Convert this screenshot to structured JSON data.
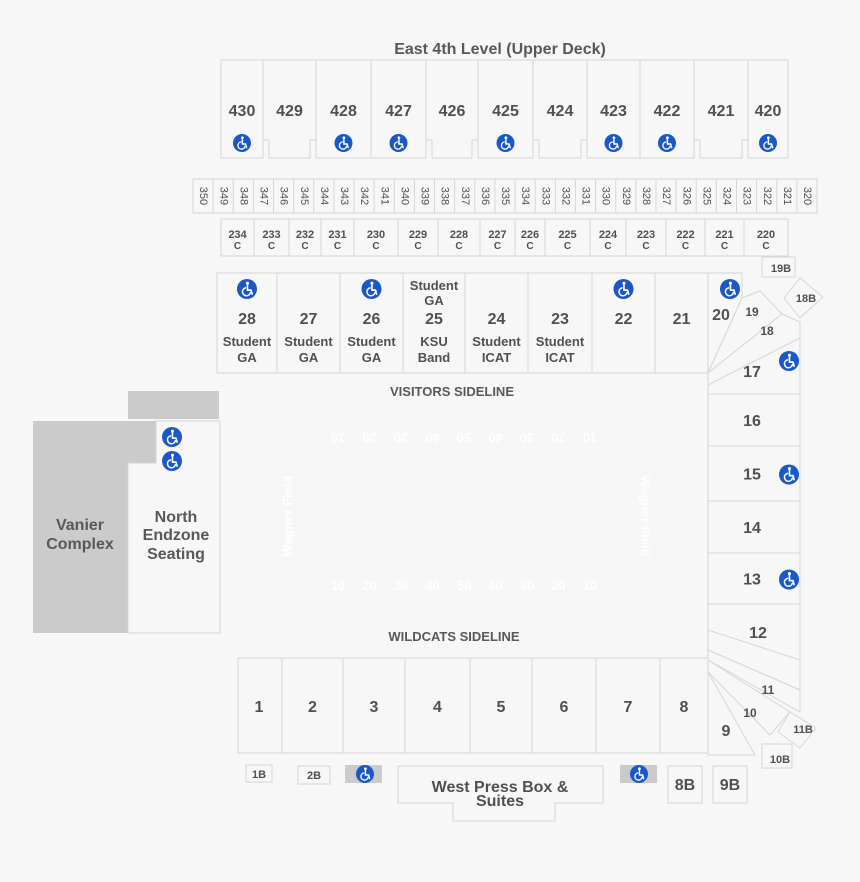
{
  "title": "East 4th Level (Upper Deck)",
  "colors": {
    "background": "#f7f7f7",
    "section_stroke": "#d6d6d6",
    "section_text": "#505050",
    "label_text": "#585858",
    "accessible_icon": "#1a57c7",
    "gray_block": "#cbcbcb",
    "field_lines": "#ffffff"
  },
  "upper_deck_sections": [
    "430",
    "429",
    "428",
    "427",
    "426",
    "425",
    "424",
    "423",
    "422",
    "421",
    "420"
  ],
  "upper_deck_accessible": [
    "430",
    "428",
    "427",
    "425",
    "423",
    "422",
    "420"
  ],
  "level3_sections": [
    "350",
    "349",
    "348",
    "347",
    "346",
    "345",
    "344",
    "343",
    "342",
    "341",
    "340",
    "339",
    "338",
    "337",
    "336",
    "335",
    "334",
    "333",
    "332",
    "331",
    "330",
    "329",
    "328",
    "327",
    "326",
    "325",
    "324",
    "323",
    "322",
    "321",
    "320"
  ],
  "level2_sections": [
    "234",
    "233",
    "232",
    "231",
    "230",
    "229",
    "228",
    "227",
    "226",
    "225",
    "224",
    "223",
    "222",
    "221",
    "220"
  ],
  "level2_suffix": "C",
  "east_lower_sections": [
    {
      "num": "28",
      "lines": [
        "Student",
        "GA"
      ],
      "accessible": true
    },
    {
      "num": "27",
      "lines": [
        "Student",
        "GA"
      ],
      "accessible": false
    },
    {
      "num": "26",
      "lines": [
        "Student",
        "GA"
      ],
      "accessible": true
    },
    {
      "num": "25",
      "top_lines": [
        "Student",
        "GA"
      ],
      "lines": [
        "KSU",
        "Band"
      ],
      "accessible": false
    },
    {
      "num": "24",
      "lines": [
        "Student",
        "ICAT"
      ],
      "accessible": false
    },
    {
      "num": "23",
      "lines": [
        "Student",
        "ICAT"
      ],
      "accessible": false
    },
    {
      "num": "22",
      "lines": [],
      "accessible": true
    },
    {
      "num": "21",
      "lines": [],
      "accessible": false
    }
  ],
  "corner_ne": {
    "s20": "20",
    "s19": "19",
    "s18": "18",
    "s19b": "19B",
    "s18b": "18B"
  },
  "south_sections": [
    {
      "num": "17",
      "accessible": true
    },
    {
      "num": "16",
      "accessible": false
    },
    {
      "num": "15",
      "accessible": true
    },
    {
      "num": "14",
      "accessible": false
    },
    {
      "num": "13",
      "accessible": true
    },
    {
      "num": "12",
      "accessible": false
    }
  ],
  "corner_se": {
    "s11": "11",
    "s10": "10",
    "s9": "9",
    "s11b": "11B",
    "s10b": "10B"
  },
  "west_sections": [
    "1",
    "2",
    "3",
    "4",
    "5",
    "6",
    "7",
    "8"
  ],
  "west_small": {
    "s1b": "1B",
    "s2b": "2B",
    "s8b": "8B",
    "s9b": "9B"
  },
  "visitors_sideline": "VISITORS SIDELINE",
  "wildcats_sideline": "WILDCATS SIDELINE",
  "vanier_complex": [
    "Vanier",
    "Complex"
  ],
  "north_endzone": [
    "North",
    "Endzone",
    "Seating"
  ],
  "west_press_box": [
    "West Press Box &",
    "Suites"
  ],
  "field_name": "Wagner Field",
  "yard_numbers": [
    "10",
    "20",
    "30",
    "40",
    "50",
    "40",
    "30",
    "20",
    "10"
  ]
}
